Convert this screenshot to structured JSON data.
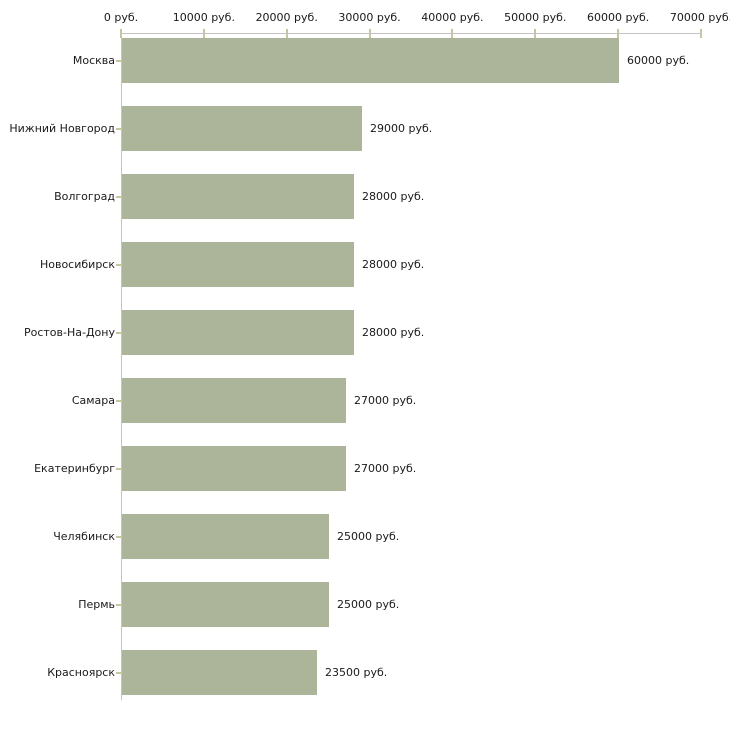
{
  "chart_data": {
    "type": "bar",
    "orientation": "horizontal",
    "title": "",
    "xlabel": "",
    "ylabel": "",
    "xlim": [
      0,
      70000
    ],
    "grid": false,
    "legend": false,
    "axis_position": "top",
    "categories": [
      "Москва",
      "Нижний Новгород",
      "Волгоград",
      "Новосибирск",
      "Ростов-На-Дону",
      "Самара",
      "Екатеринбург",
      "Челябинск",
      "Пермь",
      "Красноярск"
    ],
    "values": [
      60000,
      29000,
      28000,
      28000,
      28000,
      27000,
      27000,
      25000,
      25000,
      23500
    ],
    "value_labels": [
      "60000 руб.",
      "29000 руб.",
      "28000 руб.",
      "28000 руб.",
      "28000 руб.",
      "27000 руб.",
      "27000 руб.",
      "25000 руб.",
      "25000 руб.",
      "23500 руб."
    ],
    "x_ticks": [
      0,
      10000,
      20000,
      30000,
      40000,
      50000,
      60000,
      70000
    ],
    "x_tick_labels": [
      "0 руб.",
      "10000 руб.",
      "20000 руб.",
      "30000 руб.",
      "40000 руб.",
      "50000 руб.",
      "60000 руб.",
      "70000 руб."
    ],
    "colors": {
      "bar": "#acb499",
      "axis_line": "#c3c3c3",
      "tick": "#c6c6a0",
      "text": "#1a1a1a",
      "background": "#ffffff"
    }
  }
}
